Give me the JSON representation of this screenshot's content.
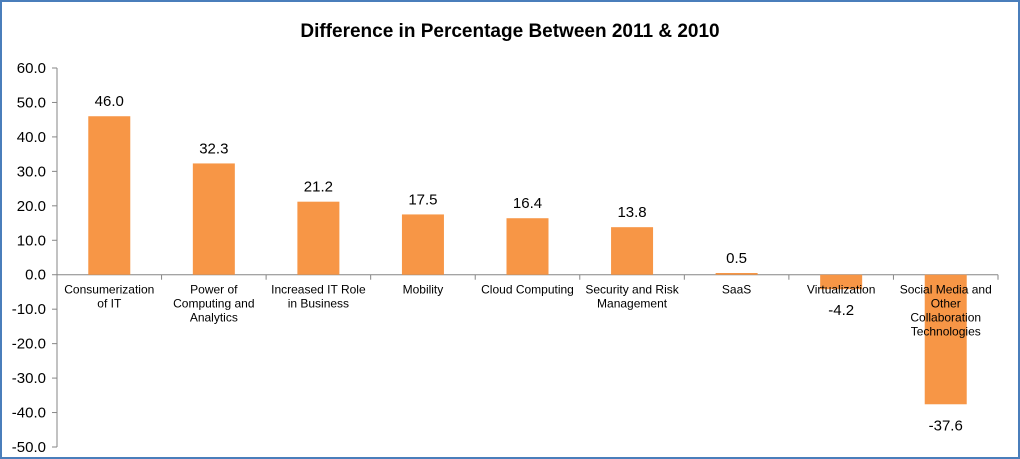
{
  "chart_data": {
    "type": "bar",
    "title": "Difference in Percentage Between 2011 & 2010",
    "xlabel": "",
    "ylabel": "",
    "ylim": [
      -50,
      60
    ],
    "ytick_step": 10,
    "ytick_labels": [
      "60.0",
      "50.0",
      "40.0",
      "30.0",
      "20.0",
      "10.0",
      "0.0",
      "-10.0",
      "-20.0",
      "-30.0",
      "-40.0",
      "-50.0"
    ],
    "categories": [
      "Consumerization of IT",
      "Power of Computing and Analytics",
      "Increased IT Role in Business",
      "Mobility",
      "Cloud Computing",
      "Security and Risk Management",
      "SaaS",
      "Virtualization",
      "Social Media and Other Collaboration Technologies"
    ],
    "category_lines": [
      [
        "Consumerization",
        "of IT"
      ],
      [
        "Power of",
        "Computing and",
        "Analytics"
      ],
      [
        "Increased IT Role",
        "in Business"
      ],
      [
        "Mobility"
      ],
      [
        "Cloud Computing"
      ],
      [
        "Security and Risk",
        "Management"
      ],
      [
        "SaaS"
      ],
      [
        "Virtualization"
      ],
      [
        "Social Media and",
        "Other",
        "Collaboration",
        "Technologies"
      ]
    ],
    "values": [
      46.0,
      32.3,
      21.2,
      17.5,
      16.4,
      13.8,
      0.5,
      -4.2,
      -37.6
    ],
    "value_labels": [
      "46.0",
      "32.3",
      "21.2",
      "17.5",
      "16.4",
      "13.8",
      "0.5",
      "-4.2",
      "-37.6"
    ],
    "bar_color": "#f79646",
    "grid": false,
    "legend": "none"
  }
}
